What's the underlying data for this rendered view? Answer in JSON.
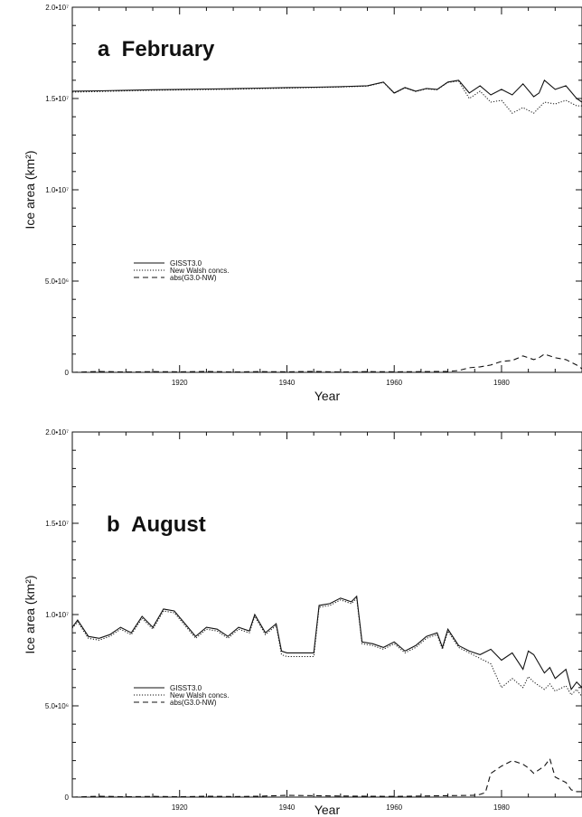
{
  "chart_data": [
    {
      "type": "line",
      "title": "a  February",
      "xlabel": "Year",
      "ylabel": "Ice area (km²)",
      "xlim": [
        1900,
        1995
      ],
      "ylim": [
        0,
        20000000
      ],
      "x_ticks": [
        1920,
        1940,
        1960,
        1980
      ],
      "x_tick_labels": [
        "1920",
        "1940",
        "1960",
        "1980"
      ],
      "y_ticks": [
        0,
        5000000,
        10000000,
        15000000,
        20000000
      ],
      "y_tick_labels": [
        "0",
        "5.0•10⁶",
        "1.0•10⁷",
        "1.5•10⁷",
        "2.0•10⁷"
      ],
      "grid": false,
      "legend_position": "center-left",
      "series": [
        {
          "name": "GISST3.0",
          "style": "solid",
          "x": [
            1900,
            1905,
            1910,
            1915,
            1920,
            1925,
            1930,
            1935,
            1940,
            1945,
            1950,
            1955,
            1958,
            1960,
            1962,
            1964,
            1966,
            1968,
            1970,
            1972,
            1974,
            1976,
            1978,
            1980,
            1982,
            1984,
            1986,
            1987,
            1988,
            1990,
            1992,
            1994,
            1995
          ],
          "values": [
            15400000,
            15420000,
            15450000,
            15480000,
            15500000,
            15520000,
            15540000,
            15570000,
            15600000,
            15620000,
            15650000,
            15700000,
            15900000,
            15300000,
            15600000,
            15400000,
            15550000,
            15500000,
            15900000,
            16000000,
            15300000,
            15700000,
            15200000,
            15500000,
            15200000,
            15800000,
            15100000,
            15300000,
            16000000,
            15500000,
            15700000,
            15000000,
            14800000
          ]
        },
        {
          "name": "New Walsh concs.",
          "style": "dotted",
          "x": [
            1900,
            1905,
            1910,
            1915,
            1920,
            1925,
            1930,
            1935,
            1940,
            1945,
            1950,
            1955,
            1958,
            1960,
            1962,
            1964,
            1966,
            1968,
            1970,
            1972,
            1974,
            1976,
            1978,
            1980,
            1982,
            1984,
            1986,
            1987,
            1988,
            1990,
            1992,
            1994,
            1995
          ],
          "values": [
            15350000,
            15380000,
            15420000,
            15450000,
            15470000,
            15490000,
            15510000,
            15540000,
            15570000,
            15600000,
            15630000,
            15680000,
            15880000,
            15280000,
            15580000,
            15380000,
            15530000,
            15480000,
            15880000,
            15950000,
            15000000,
            15400000,
            14800000,
            14900000,
            14200000,
            14500000,
            14200000,
            14500000,
            14800000,
            14700000,
            14900000,
            14600000,
            14600000
          ]
        },
        {
          "name": "abs(G3.0-NW)",
          "style": "dashed",
          "x": [
            1900,
            1905,
            1910,
            1915,
            1920,
            1925,
            1930,
            1935,
            1940,
            1945,
            1950,
            1955,
            1960,
            1965,
            1970,
            1972,
            1974,
            1976,
            1978,
            1980,
            1982,
            1984,
            1986,
            1987,
            1988,
            1990,
            1992,
            1994,
            1995
          ],
          "values": [
            0,
            50000,
            20000,
            40000,
            30000,
            50000,
            20000,
            40000,
            30000,
            50000,
            20000,
            40000,
            30000,
            40000,
            50000,
            100000,
            250000,
            300000,
            400000,
            600000,
            650000,
            900000,
            700000,
            800000,
            1000000,
            800000,
            700000,
            400000,
            200000
          ]
        }
      ]
    },
    {
      "type": "line",
      "title": "b  August",
      "xlabel": "Year",
      "ylabel": "Ice area (km²)",
      "xlim": [
        1900,
        1995
      ],
      "ylim": [
        0,
        20000000
      ],
      "x_ticks": [
        1920,
        1940,
        1960,
        1980
      ],
      "x_tick_labels": [
        "1920",
        "1940",
        "1960",
        "1980"
      ],
      "y_ticks": [
        0,
        5000000,
        10000000,
        15000000,
        20000000
      ],
      "y_tick_labels": [
        "0",
        "5.0•10⁶",
        "1.0•10⁷",
        "1.5•10⁷",
        "2.0•10⁷"
      ],
      "grid": false,
      "legend_position": "center-left",
      "series": [
        {
          "name": "GISST3.0",
          "style": "solid",
          "x": [
            1900,
            1901,
            1903,
            1905,
            1907,
            1909,
            1911,
            1913,
            1915,
            1917,
            1919,
            1921,
            1923,
            1925,
            1927,
            1929,
            1931,
            1933,
            1934,
            1936,
            1938,
            1939,
            1940,
            1945,
            1946,
            1948,
            1950,
            1952,
            1953,
            1954,
            1956,
            1958,
            1960,
            1962,
            1964,
            1966,
            1968,
            1969,
            1970,
            1972,
            1974,
            1976,
            1978,
            1980,
            1982,
            1984,
            1985,
            1986,
            1988,
            1989,
            1990,
            1992,
            1993,
            1994,
            1995
          ],
          "values": [
            9300000,
            9700000,
            8800000,
            8700000,
            8900000,
            9300000,
            9000000,
            9900000,
            9300000,
            10300000,
            10200000,
            9500000,
            8800000,
            9300000,
            9200000,
            8800000,
            9300000,
            9100000,
            10000000,
            9000000,
            9500000,
            8000000,
            7900000,
            7900000,
            10500000,
            10600000,
            10900000,
            10700000,
            11000000,
            8500000,
            8400000,
            8200000,
            8500000,
            8000000,
            8300000,
            8800000,
            9000000,
            8200000,
            9200000,
            8300000,
            8000000,
            7800000,
            8100000,
            7500000,
            7900000,
            7000000,
            8000000,
            7800000,
            6800000,
            7100000,
            6500000,
            7000000,
            5900000,
            6300000,
            6000000
          ]
        },
        {
          "name": "New Walsh concs.",
          "style": "dotted",
          "x": [
            1900,
            1901,
            1903,
            1905,
            1907,
            1909,
            1911,
            1913,
            1915,
            1917,
            1919,
            1921,
            1923,
            1925,
            1927,
            1929,
            1931,
            1933,
            1934,
            1936,
            1938,
            1939,
            1940,
            1945,
            1946,
            1948,
            1950,
            1952,
            1953,
            1954,
            1956,
            1958,
            1960,
            1962,
            1964,
            1966,
            1968,
            1969,
            1970,
            1972,
            1974,
            1976,
            1978,
            1980,
            1982,
            1984,
            1985,
            1986,
            1988,
            1989,
            1990,
            1992,
            1993,
            1994,
            1995
          ],
          "values": [
            9250000,
            9600000,
            8700000,
            8600000,
            8800000,
            9200000,
            8900000,
            9800000,
            9200000,
            10200000,
            10100000,
            9400000,
            8700000,
            9200000,
            9100000,
            8700000,
            9200000,
            9000000,
            9900000,
            8900000,
            9400000,
            7800000,
            7700000,
            7700000,
            10400000,
            10500000,
            10800000,
            10600000,
            10900000,
            8400000,
            8300000,
            8100000,
            8400000,
            7900000,
            8200000,
            8700000,
            8900000,
            8100000,
            9100000,
            8200000,
            7900000,
            7600000,
            7300000,
            6000000,
            6500000,
            6000000,
            6600000,
            6300000,
            5900000,
            6200000,
            5800000,
            6100000,
            5600000,
            5900000,
            5500000
          ]
        },
        {
          "name": "abs(G3.0-NW)",
          "style": "dashed",
          "x": [
            1900,
            1905,
            1910,
            1915,
            1920,
            1925,
            1930,
            1935,
            1940,
            1945,
            1950,
            1955,
            1960,
            1965,
            1970,
            1975,
            1976,
            1977,
            1978,
            1980,
            1982,
            1984,
            1985,
            1986,
            1988,
            1989,
            1990,
            1992,
            1993,
            1994,
            1995
          ],
          "values": [
            0,
            50000,
            20000,
            40000,
            20000,
            50000,
            30000,
            50000,
            100000,
            80000,
            60000,
            50000,
            40000,
            60000,
            80000,
            100000,
            150000,
            250000,
            1300000,
            1700000,
            2000000,
            1800000,
            1600000,
            1300000,
            1700000,
            2100000,
            1100000,
            800000,
            400000,
            300000,
            300000
          ]
        }
      ]
    }
  ]
}
